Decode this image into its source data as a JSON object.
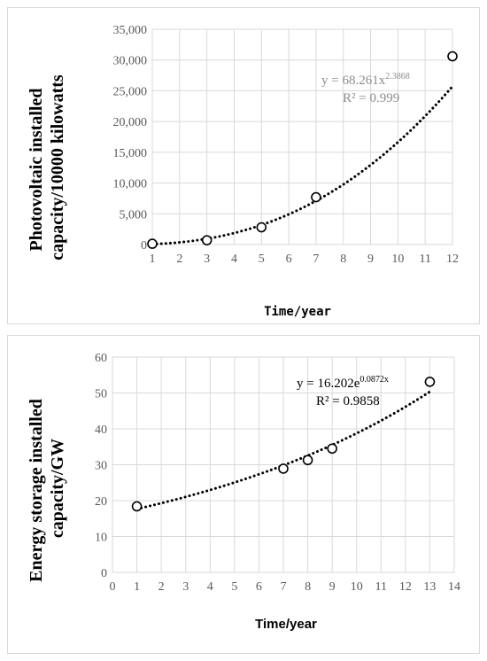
{
  "chart_data": [
    {
      "type": "scatter",
      "xlabel": "Time/year",
      "ylabel_lines": [
        "Photovoltaic installed",
        "capacity/10000 kilowatts"
      ],
      "x_ticks": [
        "1",
        "2",
        "3",
        "4",
        "5",
        "6",
        "7",
        "8",
        "9",
        "10",
        "11",
        "12"
      ],
      "y_ticks": [
        "0",
        "5,000",
        "10,000",
        "15,000",
        "20,000",
        "25,000",
        "30,000",
        "35,000"
      ],
      "xlim": [
        1,
        12
      ],
      "ylim": [
        0,
        35000
      ],
      "grid": true,
      "series": [
        {
          "x": [
            1,
            3,
            5,
            7,
            12
          ],
          "y": [
            130,
            700,
            2800,
            7700,
            30600
          ]
        }
      ],
      "trendline": {
        "type": "power",
        "a": 68.261,
        "b": 2.3868,
        "style": "dotted"
      },
      "equation": {
        "prefix": "y = 68.261x",
        "exponent": "2.3868",
        "r2": "R² = 0.999",
        "color": "#8c8c8c"
      }
    },
    {
      "type": "scatter",
      "xlabel": "Time/year",
      "ylabel_lines": [
        "Energy storage installed",
        "capacity/GW"
      ],
      "x_ticks": [
        "0",
        "1",
        "2",
        "3",
        "4",
        "5",
        "6",
        "7",
        "8",
        "9",
        "10",
        "11",
        "12",
        "13",
        "14"
      ],
      "y_ticks": [
        "0",
        "10",
        "20",
        "30",
        "40",
        "50",
        "60"
      ],
      "xlim": [
        0,
        14
      ],
      "ylim": [
        0,
        60
      ],
      "grid": true,
      "series": [
        {
          "x": [
            1,
            7,
            8,
            9,
            13
          ],
          "y": [
            18.4,
            28.9,
            31.3,
            34.5,
            53.1
          ]
        }
      ],
      "trendline": {
        "type": "exponential",
        "a": 16.202,
        "b": 0.0872,
        "style": "dotted"
      },
      "equation": {
        "prefix": "y = 16.202e",
        "exponent": "0.0872x",
        "r2": "R² = 0.9858",
        "color": "#000000"
      }
    }
  ]
}
